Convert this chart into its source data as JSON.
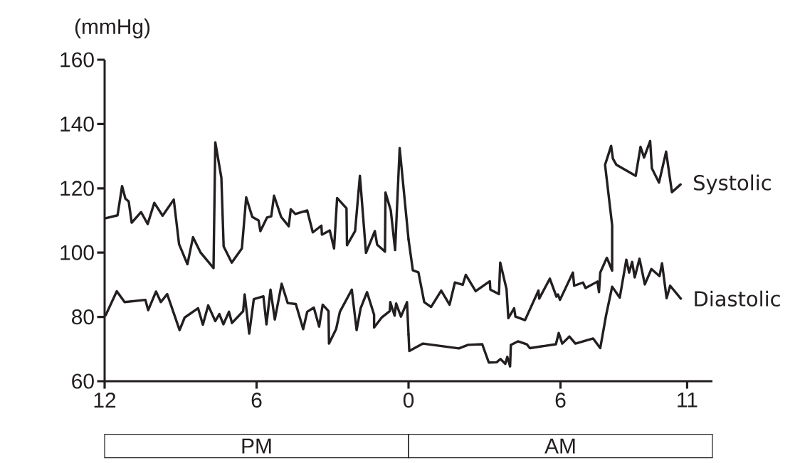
{
  "chart_data": [
    {
      "type": "line",
      "ylabel": "(mmHg)",
      "xlabel": "PM",
      "line_style": "solid",
      "xlim": [
        12,
        0
      ],
      "xticks": [
        12,
        6,
        0
      ],
      "ylim": [
        60,
        160
      ],
      "yticks": [
        60,
        80,
        100,
        120,
        140,
        160
      ],
      "series": [
        {
          "color": "#231f20",
          "x": [
            11.96,
            11.49,
            11.31,
            11.18,
            11.05,
            10.93,
            10.56,
            10.3,
            10.04,
            9.71,
            9.27,
            9.06,
            8.73,
            8.51,
            8.21,
            7.7,
            7.63,
            7.39,
            7.3,
            6.98,
            6.58,
            6.41,
            6.17,
            5.92,
            5.85,
            5.59,
            5.42,
            5.31,
            5.03,
            4.73,
            4.65,
            4.47,
            4.0,
            3.78,
            3.44,
            3.42,
            3.11,
            2.94,
            2.82,
            2.45,
            2.43,
            2.11,
            1.92,
            1.68,
            1.33,
            1.24,
            0.93,
            0.91,
            0.7,
            0.53,
            0.35,
            0
          ],
          "values": [
            110.7,
            111.6,
            120.7,
            116.8,
            115.9,
            109.3,
            112.6,
            108.9,
            115.5,
            111.5,
            116.5,
            102.6,
            96.4,
            104.8,
            100.0,
            95.2,
            134.3,
            123.3,
            101.9,
            96.9,
            101.3,
            117.2,
            111.1,
            110.0,
            106.7,
            110.9,
            111.3,
            117.7,
            111.1,
            108.2,
            113.5,
            112.0,
            113.1,
            106.3,
            108.4,
            105.6,
            106.9,
            101.3,
            117.0,
            113.8,
            102.3,
            106.7,
            123.9,
            99.9,
            106.7,
            102.5,
            100.3,
            118.7,
            113.1,
            100.8,
            132.5,
            104.1
          ]
        },
        {
          "color": "#231f20",
          "x": [
            11.96,
            11.52,
            11.21,
            10.39,
            10.28,
            9.97,
            9.78,
            9.53,
            9.04,
            8.84,
            8.31,
            8.12,
            7.91,
            7.63,
            7.47,
            7.31,
            7.09,
            6.97,
            6.53,
            6.47,
            6.29,
            6.11,
            5.73,
            5.61,
            5.45,
            5.28,
            5.01,
            4.77,
            4.45,
            4.16,
            4.0,
            3.74,
            3.53,
            3.39,
            3.16,
            3.14,
            2.86,
            2.71,
            2.24,
            2.05,
            1.89,
            1.64,
            1.36,
            1.36,
            1.05,
            0.74,
            0.72,
            0.55,
            0.49,
            0.3,
            0.06,
            0
          ],
          "values": [
            80.5,
            88.0,
            84.6,
            85.3,
            82.1,
            87.9,
            84.6,
            87.1,
            75.9,
            79.8,
            82.7,
            77.6,
            83.6,
            78.7,
            80.9,
            77.7,
            81.6,
            78.1,
            81.8,
            87.0,
            74.8,
            85.5,
            86.4,
            77.7,
            88.5,
            79.2,
            90.3,
            84.3,
            84.0,
            76.2,
            81.6,
            82.9,
            77.0,
            83.8,
            81.8,
            71.7,
            76.2,
            81.6,
            88.5,
            75.9,
            82.7,
            87.7,
            80.7,
            76.7,
            79.9,
            81.8,
            84.6,
            80.4,
            84.2,
            80.1,
            84.6,
            74.5
          ]
        }
      ]
    },
    {
      "type": "line",
      "xlabel": "AM",
      "line_style": "solid",
      "tick_labels": "x",
      "xlim": [
        0,
        12
      ],
      "xticks": [
        6,
        11
      ],
      "ylim": [
        60,
        160
      ],
      "series": [
        {
          "name": "Systolic",
          "color": "#231f20",
          "x": [
            0,
            0.17,
            0.39,
            0.62,
            0.89,
            1.29,
            1.62,
            1.83,
            2.14,
            2.26,
            2.65,
            3.21,
            3.23,
            3.57,
            3.62,
            3.87,
            3.94,
            4.17,
            4.22,
            4.6,
            5.13,
            5.16,
            5.58,
            5.84,
            5.9,
            5.98,
            6.49,
            6.54,
            6.89,
            6.99,
            7.46,
            7.52,
            7.57,
            7.83,
            8.04,
            8.04,
            7.76,
            8.0,
            8.07,
            8.21,
            8.97,
            9.16,
            9.3,
            9.54,
            9.61,
            9.89,
            10.17,
            10.4,
            10.74
          ],
          "values": [
            104.1,
            94.5,
            93.9,
            84.6,
            83.1,
            88.2,
            83.8,
            90.7,
            90.0,
            93.1,
            88.0,
            91.1,
            88.5,
            87.1,
            96.9,
            88.6,
            79.6,
            82.7,
            80.1,
            79.0,
            88.2,
            85.7,
            91.9,
            86.3,
            87.0,
            85.3,
            93.8,
            89.7,
            90.7,
            89.0,
            91.0,
            87.7,
            93.8,
            98.4,
            94.4,
            108.5,
            127.3,
            133.2,
            129.2,
            127.3,
            123.9,
            132.9,
            129.6,
            134.7,
            126.2,
            121.8,
            131.4,
            118.8,
            121.2
          ]
        },
        {
          "name": "Diastolic",
          "color": "#231f20",
          "x": [
            0,
            0.03,
            0.57,
            1.99,
            2.35,
            2.91,
            3.17,
            3.48,
            3.63,
            3.82,
            3.9,
            4.01,
            4.04,
            4.32,
            4.67,
            4.79,
            5.82,
            5.93,
            6.07,
            6.35,
            6.59,
            7.29,
            7.57,
            7.8,
            8.04,
            8.34,
            8.6,
            8.71,
            8.83,
            8.93,
            9.12,
            9.33,
            9.59,
            9.91,
            10.01,
            10.19,
            10.33,
            10.75
          ],
          "values": [
            74.5,
            69.4,
            71.7,
            70.2,
            71.3,
            71.5,
            65.8,
            65.9,
            66.9,
            65.4,
            67.6,
            64.6,
            71.3,
            72.4,
            71.5,
            70.3,
            71.5,
            75.0,
            71.7,
            73.9,
            71.7,
            73.3,
            70.3,
            80.5,
            89.4,
            86.0,
            97.8,
            93.8,
            97.1,
            92.3,
            98.1,
            90.1,
            94.9,
            92.7,
            96.7,
            85.8,
            89.7,
            85.7
          ]
        }
      ]
    }
  ]
}
